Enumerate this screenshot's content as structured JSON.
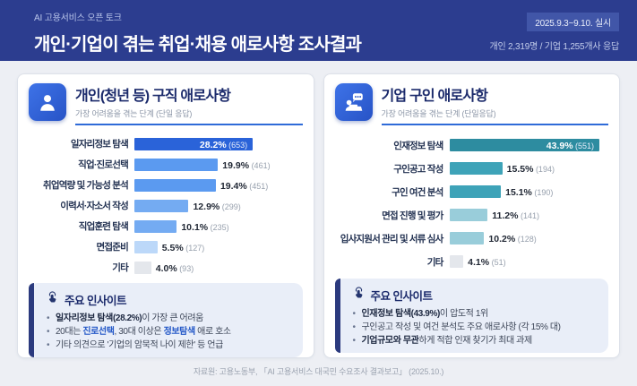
{
  "header": {
    "eyebrow": "AI 고용서비스 오픈 토크",
    "title": "개인·기업이 겪는 취업·채용 애로사항 조사결과",
    "date_badge": "2025.9.3~9.10. 실시",
    "respondents": "개인 2,319명 / 기업 1,255개사 응답"
  },
  "panels": [
    {
      "icon": "person-icon",
      "title": "개인(청년 등) 구직 애로사항",
      "subtitle": "가장 어려움을 겪는 단계 (단일 응답)",
      "scale_max": 40,
      "rows": [
        {
          "label": "일자리정보 탐색",
          "value": 28.2,
          "value_label": "28.2%",
          "count_label": "(653)",
          "color": "#2a63d9",
          "inside": true
        },
        {
          "label": "직업·진로선택",
          "value": 19.9,
          "value_label": "19.9%",
          "count_label": "(461)",
          "color": "#5b9af0",
          "inside": false
        },
        {
          "label": "취업역량 및 가능성 분석",
          "value": 19.4,
          "value_label": "19.4%",
          "count_label": "(451)",
          "color": "#5b9af0",
          "inside": false
        },
        {
          "label": "이력서·자소서 작성",
          "value": 12.9,
          "value_label": "12.9%",
          "count_label": "(299)",
          "color": "#74abf2",
          "inside": false
        },
        {
          "label": "직업훈련 탐색",
          "value": 10.1,
          "value_label": "10.1%",
          "count_label": "(235)",
          "color": "#74abf2",
          "inside": false
        },
        {
          "label": "면접준비",
          "value": 5.5,
          "value_label": "5.5%",
          "count_label": "(127)",
          "color": "#bcd8f9",
          "inside": false
        },
        {
          "label": "기타",
          "value": 4.0,
          "value_label": "4.0%",
          "count_label": "(93)",
          "color": "#e4e7ec",
          "inside": false
        }
      ],
      "insight": {
        "icon": "touch-icon",
        "title": "주요 인사이트",
        "bullets": [
          [
            {
              "text": "일자리정보 탐색(28.2%)",
              "style": "bold"
            },
            {
              "text": "이 가장 큰 어려움",
              "style": "normal"
            }
          ],
          [
            {
              "text": "20대는 ",
              "style": "normal"
            },
            {
              "text": "진로선택",
              "style": "bold-blue"
            },
            {
              "text": ", 30대 이상은 ",
              "style": "normal"
            },
            {
              "text": "정보탐색",
              "style": "bold-blue"
            },
            {
              "text": " 애로 호소",
              "style": "normal"
            }
          ],
          [
            {
              "text": "기타 의견으로 '기업의 암묵적 나이 제한' 등 언급",
              "style": "normal"
            }
          ]
        ]
      }
    },
    {
      "icon": "employer-icon",
      "title": "기업 구인 애로사항",
      "subtitle": "가장 어려움을 겪는 단계 (단일응답)",
      "scale_max": 46.5,
      "rows": [
        {
          "label": "인재정보 탐색",
          "value": 43.9,
          "value_label": "43.9%",
          "count_label": "(551)",
          "color": "#2d8ca0",
          "inside": true
        },
        {
          "label": "구인공고 작성",
          "value": 15.5,
          "value_label": "15.5%",
          "count_label": "(194)",
          "color": "#3ea3b8",
          "inside": false
        },
        {
          "label": "구인 여건 분석",
          "value": 15.1,
          "value_label": "15.1%",
          "count_label": "(190)",
          "color": "#3ea3b8",
          "inside": false
        },
        {
          "label": "면접 진행 및 평가",
          "value": 11.2,
          "value_label": "11.2%",
          "count_label": "(141)",
          "color": "#99cdda",
          "inside": false
        },
        {
          "label": "입사지원서 관리 및 서류 심사",
          "value": 10.2,
          "value_label": "10.2%",
          "count_label": "(128)",
          "color": "#99cdda",
          "inside": false
        },
        {
          "label": "기타",
          "value": 4.1,
          "value_label": "4.1%",
          "count_label": "(51)",
          "color": "#e4e7ec",
          "inside": false
        }
      ],
      "insight": {
        "icon": "touch-icon",
        "title": "주요 인사이트",
        "bullets": [
          [
            {
              "text": "인재정보 탐색(43.9%)",
              "style": "bold"
            },
            {
              "text": "이 압도적 1위",
              "style": "normal"
            }
          ],
          [
            {
              "text": "구인공고 작성 및 여건 분석도 주요 애로사항 (각 15% 대)",
              "style": "normal"
            }
          ],
          [
            {
              "text": "기업규모와 무관",
              "style": "bold"
            },
            {
              "text": "하게 적합 인재 찾기가 최대 과제",
              "style": "normal"
            }
          ]
        ]
      }
    }
  ],
  "footer": "자료원: 고용노동부, 「AI 고용서비스 대국민 수요조사 결과보고」 (2025.10.)",
  "colors": {
    "header_bg": "#2c3d8f",
    "badge_bg": "#4156a8",
    "panel_underline": "#2f6bd8",
    "insight_bg": "#e9eef8",
    "insight_accent": "#2b3a7e",
    "individual_primary": "#2a63d9",
    "company_primary": "#2d8ca0"
  },
  "chart_data": [
    {
      "type": "bar",
      "orientation": "horizontal",
      "title": "개인(청년 등) 구직 애로사항",
      "subtitle": "가장 어려움을 겪는 단계 (단일 응답)",
      "categories": [
        "일자리정보 탐색",
        "직업·진로선택",
        "취업역량 및 가능성 분석",
        "이력서·자소서 작성",
        "직업훈련 탐색",
        "면접준비",
        "기타"
      ],
      "values": [
        28.2,
        19.9,
        19.4,
        12.9,
        10.1,
        5.5,
        4.0
      ],
      "counts": [
        653,
        461,
        451,
        299,
        235,
        127,
        93
      ],
      "unit": "%",
      "xlim": [
        0,
        40
      ],
      "grid": false,
      "legend": false
    },
    {
      "type": "bar",
      "orientation": "horizontal",
      "title": "기업 구인 애로사항",
      "subtitle": "가장 어려움을 겪는 단계 (단일응답)",
      "categories": [
        "인재정보 탐색",
        "구인공고 작성",
        "구인 여건 분석",
        "면접 진행 및 평가",
        "입사지원서 관리 및 서류 심사",
        "기타"
      ],
      "values": [
        43.9,
        15.5,
        15.1,
        11.2,
        10.2,
        4.1
      ],
      "counts": [
        551,
        194,
        190,
        141,
        128,
        51
      ],
      "unit": "%",
      "xlim": [
        0,
        46.5
      ],
      "grid": false,
      "legend": false
    }
  ]
}
